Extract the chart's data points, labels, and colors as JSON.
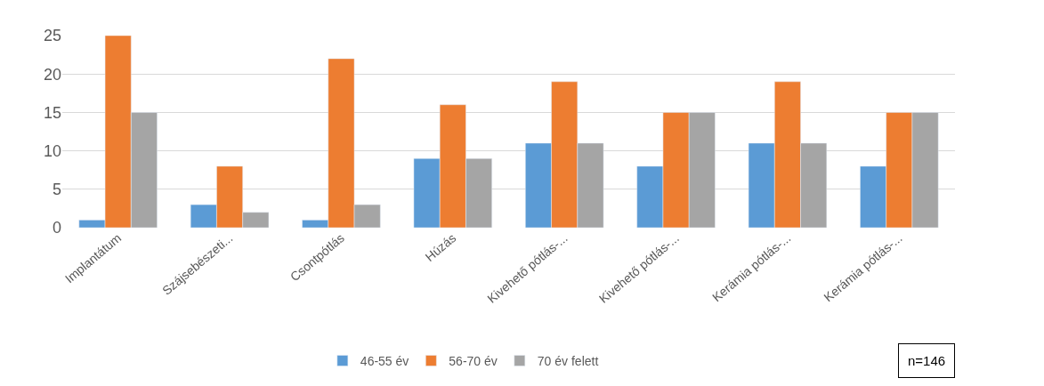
{
  "chart_data": {
    "type": "bar",
    "categories": [
      "Implantátum",
      "Szájsebészeti...",
      "Csontpótlás",
      "Húzás",
      "Kivehető pótlás-...",
      "Kivehető pótlás-...",
      "Kerámia pótlás-...",
      "Kerámia pótlás-..."
    ],
    "series": [
      {
        "name": "46-55 év",
        "color": "#5b9bd5",
        "values": [
          1,
          3,
          1,
          9,
          11,
          8,
          11,
          8
        ]
      },
      {
        "name": "56-70 év",
        "color": "#ed7d31",
        "values": [
          25,
          8,
          22,
          16,
          19,
          15,
          19,
          15
        ]
      },
      {
        "name": "70 év felett",
        "color": "#a5a5a5",
        "values": [
          15,
          2,
          3,
          9,
          11,
          15,
          11,
          15
        ]
      }
    ],
    "ylim": [
      0,
      25
    ],
    "yticks": [
      0,
      5,
      10,
      15,
      20,
      25
    ],
    "grid": "y",
    "legend": "bottom",
    "annotations": [
      "n=146"
    ]
  }
}
